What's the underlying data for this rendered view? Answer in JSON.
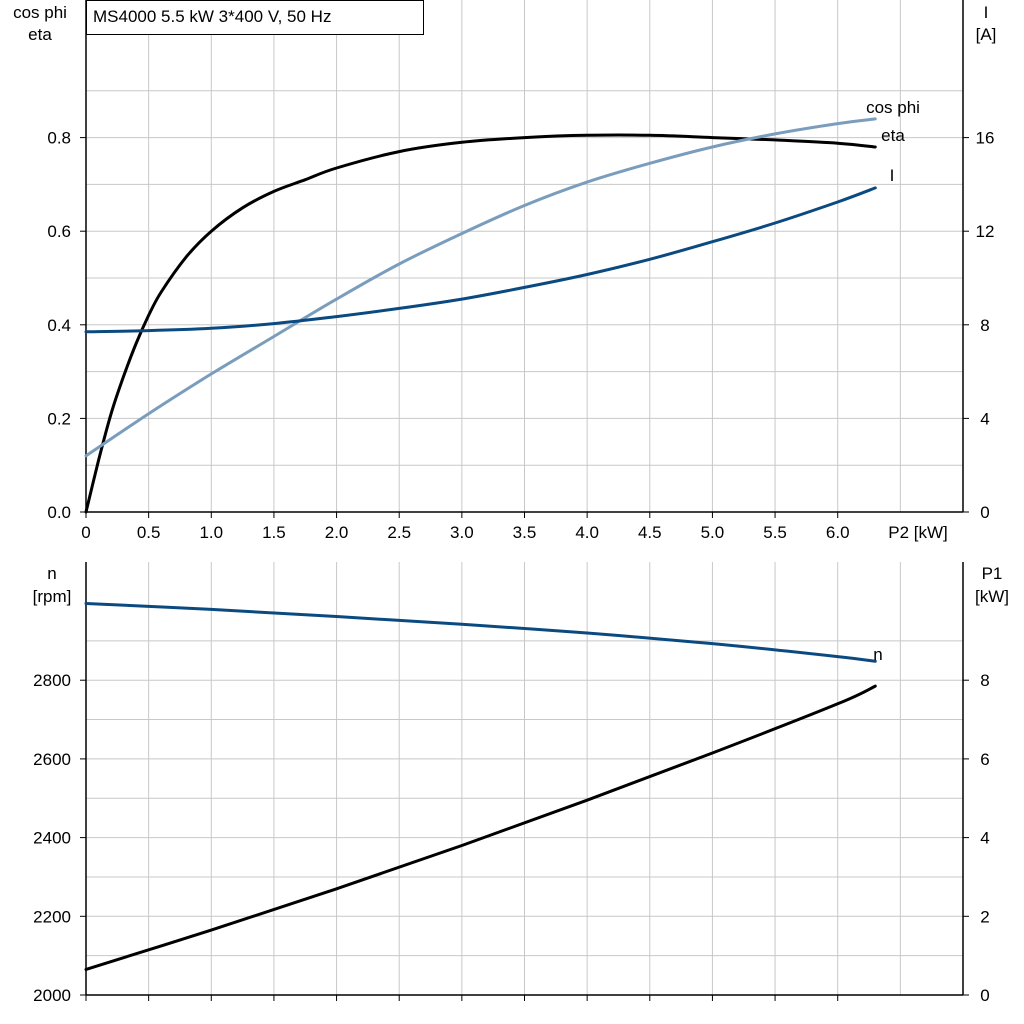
{
  "colors": {
    "eta": "#000000",
    "cos_phi": "#7a9dbd",
    "I": "#0b4a80",
    "n": "#0b4a80",
    "P1": "#000000",
    "grid": "#c8c8c8"
  },
  "chart_data": [
    {
      "type": "line",
      "title": "MS4000   5.5 kW   3*400 V, 50 Hz",
      "xlabel": "P2 [kW]",
      "xlim": [
        0,
        7
      ],
      "xticks": [
        0,
        0.5,
        1.0,
        1.5,
        2.0,
        2.5,
        3.0,
        3.5,
        4.0,
        4.5,
        5.0,
        5.5,
        6.0
      ],
      "xtick_labels": [
        "0",
        "0.5",
        "1.0",
        "1.5",
        "2.0",
        "2.5",
        "3.0",
        "3.5",
        "4.0",
        "4.5",
        "5.0",
        "5.5",
        "6.0"
      ],
      "ylabel_left": [
        "cos phi",
        "eta"
      ],
      "ylim_left": [
        0,
        1.0
      ],
      "yticks_left": [
        "0.0",
        "0.2",
        "0.4",
        "0.6",
        "0.8"
      ],
      "ylabel_right": [
        "I",
        "[A]"
      ],
      "ylim_right": [
        0,
        20
      ],
      "yticks_right": [
        "0",
        "4",
        "8",
        "12",
        "16"
      ],
      "grid": true,
      "series": [
        {
          "name": "eta",
          "axis": "left",
          "x": [
            0,
            0.1,
            0.2,
            0.3,
            0.4,
            0.5,
            0.6,
            0.8,
            1.0,
            1.25,
            1.5,
            1.75,
            2.0,
            2.5,
            3.0,
            3.5,
            4.0,
            4.5,
            5.0,
            5.5,
            6.0,
            6.3
          ],
          "y": [
            0.0,
            0.11,
            0.21,
            0.29,
            0.36,
            0.42,
            0.47,
            0.545,
            0.6,
            0.65,
            0.685,
            0.71,
            0.735,
            0.77,
            0.79,
            0.8,
            0.805,
            0.805,
            0.8,
            0.795,
            0.788,
            0.78
          ]
        },
        {
          "name": "cos phi",
          "axis": "left",
          "x": [
            0,
            0.5,
            1.0,
            1.5,
            2.0,
            2.5,
            3.0,
            3.5,
            4.0,
            4.5,
            5.0,
            5.5,
            6.0,
            6.3
          ],
          "y": [
            0.12,
            0.21,
            0.295,
            0.375,
            0.455,
            0.53,
            0.595,
            0.655,
            0.705,
            0.745,
            0.78,
            0.808,
            0.83,
            0.84
          ]
        },
        {
          "name": "I",
          "axis": "right",
          "x": [
            0,
            0.5,
            1.0,
            1.5,
            2.0,
            2.5,
            3.0,
            3.5,
            4.0,
            4.5,
            5.0,
            5.5,
            6.0,
            6.3
          ],
          "y": [
            7.7,
            7.75,
            7.85,
            8.05,
            8.35,
            8.7,
            9.1,
            9.6,
            10.15,
            10.8,
            11.55,
            12.35,
            13.25,
            13.85
          ]
        }
      ]
    },
    {
      "type": "line",
      "xlim": [
        0,
        7
      ],
      "ylabel_left": [
        "n",
        "[rpm]"
      ],
      "ylim_left": [
        2000,
        3000
      ],
      "yticks_left": [
        "2000",
        "2200",
        "2400",
        "2600",
        "2800"
      ],
      "ylabel_right": [
        "P1",
        "[kW]"
      ],
      "ylim_right": [
        0,
        10
      ],
      "yticks_right": [
        "0",
        "2",
        "4",
        "6",
        "8"
      ],
      "grid": true,
      "series": [
        {
          "name": "n",
          "axis": "left",
          "x": [
            0,
            1.0,
            2.0,
            3.0,
            4.0,
            5.0,
            6.0,
            6.3
          ],
          "y": [
            2995,
            2980,
            2962,
            2942,
            2920,
            2893,
            2860,
            2848
          ]
        },
        {
          "axis": "right",
          "x": [
            0,
            1.0,
            2.0,
            3.0,
            4.0,
            5.0,
            6.0,
            6.3
          ],
          "y": [
            0.65,
            1.65,
            2.7,
            3.8,
            4.95,
            6.15,
            7.4,
            7.85
          ]
        }
      ]
    }
  ]
}
